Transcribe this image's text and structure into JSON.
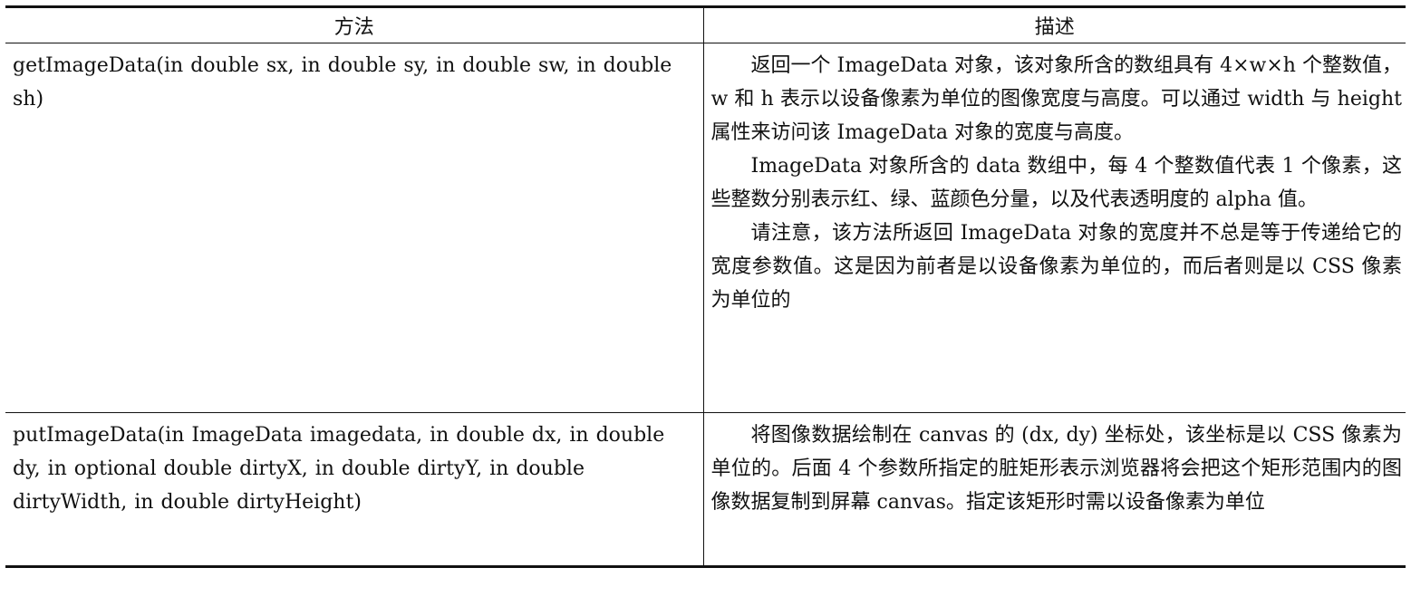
{
  "table": {
    "headers": {
      "method": "方法",
      "description": "描述"
    },
    "rows": [
      {
        "method": "getImageData(in double sx, in double sy, in double sw, in double sh)",
        "description": [
          "返回一个 ImageData 对象，该对象所含的数组具有 4×w×h 个整数值，w 和 h 表示以设备像素为单位的图像宽度与高度。可以通过 width 与 height 属性来访问该 ImageData 对象的宽度与高度。",
          "ImageData 对象所含的 data 数组中，每 4 个整数值代表 1 个像素，这些整数分别表示红、绿、蓝颜色分量，以及代表透明度的 alpha 值。",
          "请注意，该方法所返回 ImageData 对象的宽度并不总是等于传递给它的宽度参数值。这是因为前者是以设备像素为单位的，而后者则是以 CSS 像素为单位的"
        ]
      },
      {
        "method": "putImageData(in ImageData imagedata, in double dx, in double dy, in optional double dirtyX, in double dirtyY, in double dirtyWidth, in double dirtyHeight)",
        "description": [
          "将图像数据绘制在 canvas 的 (dx, dy) 坐标处，该坐标是以 CSS 像素为单位的。后面 4 个参数所指定的脏矩形表示浏览器将会把这个矩形范围内的图像数据复制到屏幕 canvas。指定该矩形时需以设备像素为单位"
        ]
      }
    ]
  }
}
